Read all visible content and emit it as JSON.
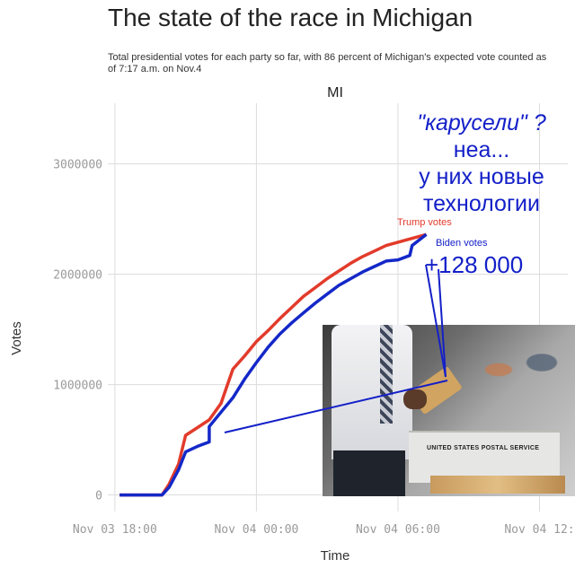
{
  "title": "The state of the race in Michigan",
  "subtitle": "Total presidential votes for each party so far, with 86 percent of Michigan's expected vote counted as of 7:17 a.m. on Nov.4",
  "annotation": {
    "line1": "\"карусели\" ?",
    "line2": "неа...",
    "line3": "у них новые",
    "line4": "технологии",
    "trump_label": "Trump votes",
    "biden_label": "Biden votes",
    "delta": "+128 000"
  },
  "photo": {
    "bin_text": "UNITED STATES POSTAL SERVICE"
  },
  "colors": {
    "trump": "#e23b2b",
    "biden": "#1428c8",
    "annotation": "#1420c8",
    "grid": "#dcdcdc"
  },
  "chart_data": {
    "type": "line",
    "facet": "MI",
    "xlabel": "Time",
    "ylabel": "Votes",
    "x_ticks": [
      "Nov 03 18:00",
      "Nov 04 00:00",
      "Nov 04 06:00",
      "Nov 04 12:"
    ],
    "x_tick_hours": [
      18,
      24,
      30,
      36
    ],
    "y_ticks": [
      0,
      1000000,
      2000000,
      3000000
    ],
    "y_tick_labels": [
      "0",
      "1000000",
      "2000000",
      "3000000"
    ],
    "xlim_hours": [
      17.7,
      37.2
    ],
    "ylim": [
      -150000,
      3550000
    ],
    "series": [
      {
        "name": "Trump votes",
        "color_key": "trump",
        "hours": [
          18.2,
          19.2,
          20.0,
          20.3,
          20.7,
          21.0,
          21.5,
          22.0,
          22.5,
          23.0,
          23.5,
          24.0,
          24.5,
          25.0,
          25.5,
          26.0,
          26.5,
          27.0,
          27.5,
          28.0,
          28.5,
          29.0,
          29.5,
          30.0,
          30.5,
          31.2
        ],
        "values": [
          0,
          0,
          0,
          100000,
          280000,
          540000,
          610000,
          680000,
          830000,
          1140000,
          1260000,
          1390000,
          1490000,
          1600000,
          1700000,
          1800000,
          1880000,
          1960000,
          2030000,
          2100000,
          2160000,
          2210000,
          2260000,
          2290000,
          2320000,
          2360000
        ]
      },
      {
        "name": "Biden votes",
        "color_key": "biden",
        "hours": [
          18.2,
          19.2,
          20.0,
          20.3,
          20.7,
          21.0,
          21.5,
          22.0,
          22.0,
          22.5,
          23.0,
          23.5,
          24.0,
          24.5,
          25.0,
          25.5,
          26.0,
          26.5,
          27.0,
          27.5,
          28.0,
          28.5,
          29.0,
          29.5,
          30.0,
          30.5,
          30.6,
          31.2
        ],
        "values": [
          0,
          0,
          0,
          70000,
          230000,
          390000,
          440000,
          480000,
          620000,
          750000,
          880000,
          1050000,
          1200000,
          1340000,
          1460000,
          1560000,
          1650000,
          1740000,
          1820000,
          1900000,
          1960000,
          2020000,
          2070000,
          2120000,
          2130000,
          2170000,
          2260000,
          2360000
        ]
      }
    ]
  }
}
